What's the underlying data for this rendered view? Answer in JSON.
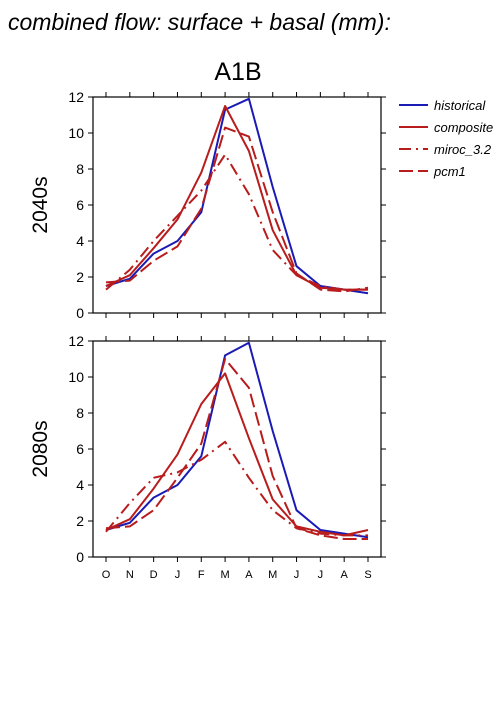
{
  "figure_title": "combined flow: surface + basal (mm):",
  "scenario": "A1B",
  "colors": {
    "historical": "#1a1ab5",
    "model": "#b81c1c"
  },
  "legend": {
    "position": "right",
    "entries": [
      {
        "label": "historical",
        "style": "solid",
        "color": "#1a1ab5"
      },
      {
        "label": "composite",
        "style": "solid",
        "color": "#b81c1c"
      },
      {
        "label": "miroc_3.2",
        "style": "dashdot",
        "color": "#b81c1c"
      },
      {
        "label": "pcm1",
        "style": "dashed",
        "color": "#b81c1c"
      }
    ]
  },
  "chart_data": [
    {
      "type": "line",
      "ylabel": "2040s",
      "ylim": [
        0,
        12
      ],
      "yticks": [
        0,
        2,
        4,
        6,
        8,
        10,
        12
      ],
      "categories": [
        "O",
        "N",
        "D",
        "J",
        "F",
        "M",
        "A",
        "M",
        "J",
        "J",
        "A",
        "S"
      ],
      "series": [
        {
          "name": "historical",
          "style": "solid",
          "color": "#1a1ab5",
          "values": [
            1.5,
            1.9,
            3.3,
            4.0,
            5.6,
            11.3,
            11.9,
            7.0,
            2.6,
            1.5,
            1.3,
            1.1
          ]
        },
        {
          "name": "composite",
          "style": "solid",
          "color": "#b81c1c",
          "values": [
            1.5,
            2.1,
            3.6,
            5.2,
            7.8,
            11.5,
            9.0,
            4.6,
            2.1,
            1.4,
            1.3,
            1.3
          ]
        },
        {
          "name": "miroc_3.2",
          "style": "dashdot",
          "color": "#b81c1c",
          "values": [
            1.3,
            2.4,
            4.0,
            5.4,
            6.8,
            8.8,
            6.6,
            3.5,
            2.1,
            1.5,
            1.3,
            1.3
          ]
        },
        {
          "name": "pcm1",
          "style": "dashed",
          "color": "#b81c1c",
          "values": [
            1.7,
            1.8,
            2.9,
            3.7,
            5.8,
            10.3,
            9.8,
            5.6,
            2.2,
            1.3,
            1.2,
            1.4
          ]
        }
      ]
    },
    {
      "type": "line",
      "ylabel": "2080s",
      "ylim": [
        0,
        12
      ],
      "yticks": [
        0,
        2,
        4,
        6,
        8,
        10,
        12
      ],
      "categories": [
        "O",
        "N",
        "D",
        "J",
        "F",
        "M",
        "A",
        "M",
        "J",
        "J",
        "A",
        "S"
      ],
      "series": [
        {
          "name": "historical",
          "style": "solid",
          "color": "#1a1ab5",
          "values": [
            1.5,
            1.9,
            3.3,
            4.0,
            5.6,
            11.2,
            11.9,
            7.0,
            2.6,
            1.5,
            1.3,
            1.1
          ]
        },
        {
          "name": "composite",
          "style": "solid",
          "color": "#b81c1c",
          "values": [
            1.5,
            2.1,
            3.8,
            5.7,
            8.5,
            10.2,
            6.6,
            3.2,
            1.7,
            1.4,
            1.2,
            1.5
          ]
        },
        {
          "name": "miroc_3.2",
          "style": "dashdot",
          "color": "#b81c1c",
          "values": [
            1.4,
            3.0,
            4.4,
            4.7,
            5.4,
            6.4,
            4.4,
            2.6,
            1.6,
            1.3,
            1.2,
            1.2
          ]
        },
        {
          "name": "pcm1",
          "style": "dashed",
          "color": "#b81c1c",
          "values": [
            1.6,
            1.7,
            2.6,
            4.4,
            6.3,
            11.0,
            9.4,
            4.5,
            1.6,
            1.2,
            1.0,
            1.0
          ]
        }
      ]
    }
  ]
}
